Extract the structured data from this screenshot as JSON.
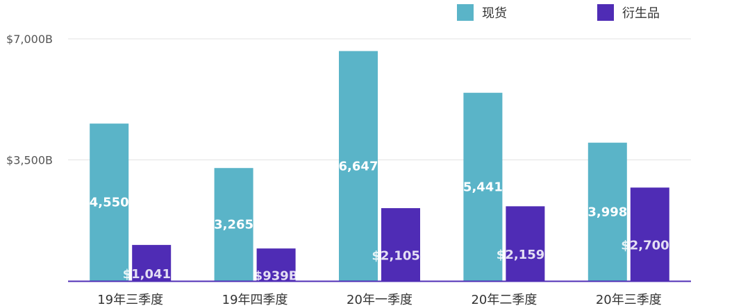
{
  "chart_data": {
    "type": "bar",
    "categories": [
      "19年三季度",
      "19年四季度",
      "20年一季度",
      "20年二季度",
      "20年三季度"
    ],
    "series": [
      {
        "name": "现货",
        "values": [
          4550,
          3265,
          6647,
          5441,
          3998
        ],
        "labels": [
          "4,550",
          "3,265",
          "6,647",
          "5,441",
          "3,998"
        ],
        "color": "#5ab4c8"
      },
      {
        "name": "衍生品",
        "values": [
          1041,
          939,
          2105,
          2159,
          2700
        ],
        "labels": [
          "$1,041B",
          "$939B",
          "$2,105B",
          "$2,159B",
          "$2,700B"
        ],
        "color": "#4f2cb5"
      }
    ],
    "y_ticks": [
      {
        "value": 7000,
        "label": "$7,000B"
      },
      {
        "value": 3500,
        "label": "$3,500B"
      }
    ],
    "ylim": [
      0,
      7000
    ],
    "grid": true,
    "legend_position": "top-right",
    "axis_color": "#4f2cb5"
  }
}
